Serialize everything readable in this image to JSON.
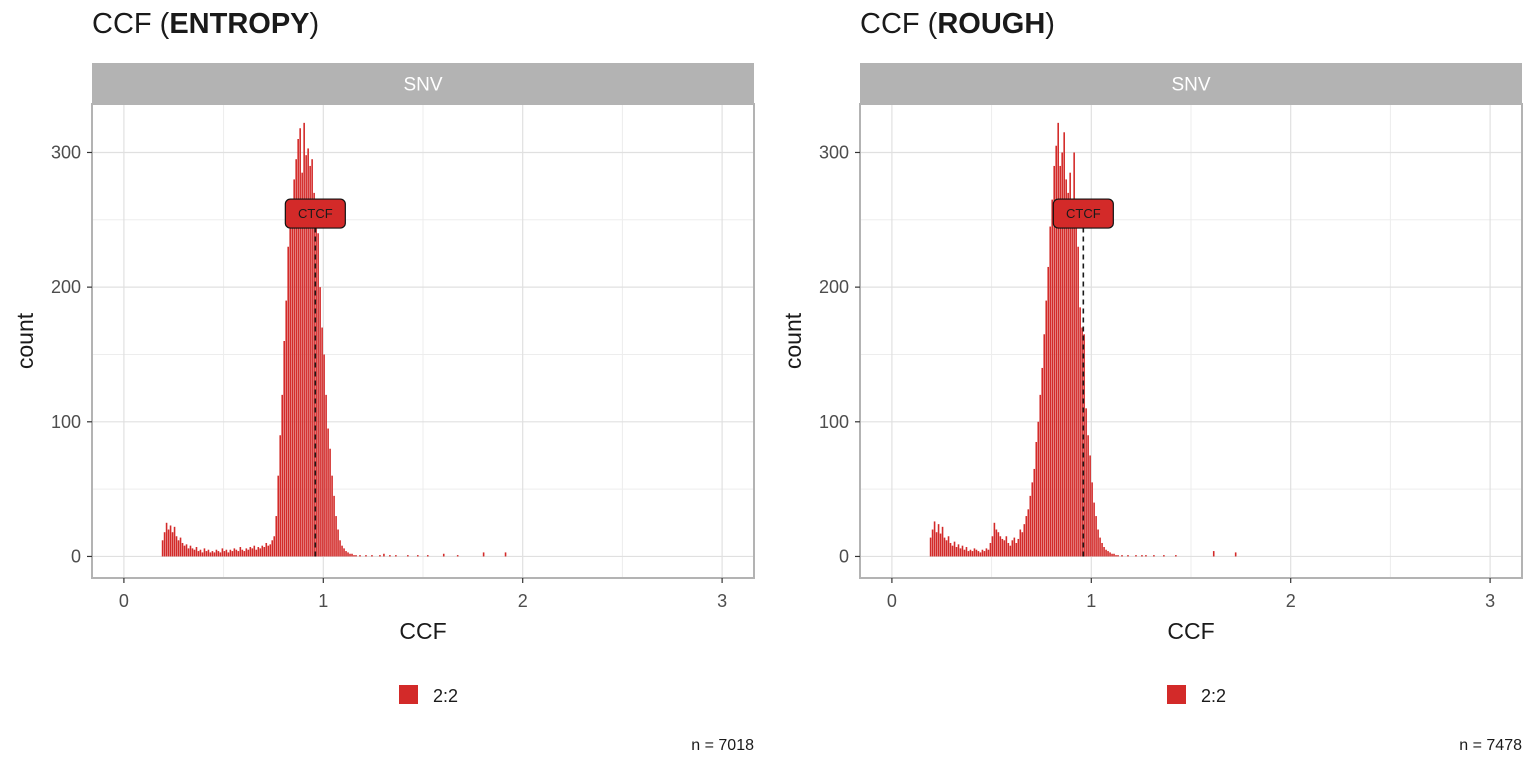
{
  "chart_data": [
    {
      "type": "bar",
      "title_prefix": "CCF (",
      "title_bold": "ENTROPY",
      "title_suffix": ")",
      "facet_label": "SNV",
      "xlabel": "CCF",
      "ylabel": "count",
      "xlim": [
        -0.16,
        3.16
      ],
      "ylim": [
        -16,
        336
      ],
      "xticks": [
        0,
        1,
        2,
        3
      ],
      "yticks": [
        0,
        100,
        200,
        300
      ],
      "bar_color": "#d32a29",
      "annotation": {
        "label": "CTCF",
        "x": 0.96,
        "y": 255
      },
      "legend": {
        "entries": [
          "2:2"
        ],
        "position": "bottom"
      },
      "caption": "n = 7018",
      "bins": {
        "start": 0.19,
        "width": 0.01,
        "counts": [
          12,
          18,
          25,
          20,
          23,
          18,
          22,
          15,
          12,
          14,
          10,
          8,
          9,
          6,
          8,
          6,
          5,
          7,
          4,
          5,
          3,
          6,
          4,
          5,
          3,
          4,
          3,
          5,
          4,
          3,
          6,
          4,
          5,
          3,
          5,
          4,
          6,
          5,
          4,
          7,
          5,
          4,
          6,
          5,
          7,
          6,
          8,
          5,
          7,
          6,
          8,
          7,
          10,
          8,
          9,
          12,
          15,
          30,
          60,
          90,
          120,
          160,
          190,
          230,
          245,
          260,
          280,
          295,
          310,
          318,
          285,
          322,
          298,
          303,
          290,
          295,
          270,
          260,
          240,
          200,
          170,
          150,
          120,
          95,
          80,
          60,
          45,
          30,
          20,
          12,
          8,
          6,
          4,
          3,
          2,
          2,
          1,
          1,
          0,
          1,
          0,
          0,
          1,
          0,
          0,
          1,
          0,
          0,
          0,
          1,
          0,
          2,
          0,
          0,
          1,
          0,
          0,
          1,
          0,
          0,
          0,
          0,
          0,
          1,
          0,
          0,
          0,
          0,
          1,
          0,
          0,
          0,
          0,
          1,
          0,
          0,
          0,
          0,
          0,
          0,
          0,
          2,
          0,
          0,
          0,
          0,
          0,
          0,
          1,
          0,
          0,
          0,
          0,
          0,
          0,
          0,
          0,
          0,
          0,
          0,
          0,
          3,
          0,
          0,
          0,
          0,
          0,
          0,
          0,
          0,
          0,
          0,
          3
        ]
      }
    },
    {
      "type": "bar",
      "title_prefix": "CCF (",
      "title_bold": "ROUGH",
      "title_suffix": ")",
      "facet_label": "SNV",
      "xlabel": "CCF",
      "ylabel": "count",
      "xlim": [
        -0.16,
        3.16
      ],
      "ylim": [
        -16,
        336
      ],
      "xticks": [
        0,
        1,
        2,
        3
      ],
      "yticks": [
        0,
        100,
        200,
        300
      ],
      "bar_color": "#d32a29",
      "annotation": {
        "label": "CTCF",
        "x": 0.96,
        "y": 255
      },
      "legend": {
        "entries": [
          "2:2"
        ],
        "position": "bottom"
      },
      "caption": "n = 7478",
      "bins": {
        "start": 0.19,
        "width": 0.01,
        "counts": [
          14,
          20,
          26,
          18,
          24,
          17,
          22,
          14,
          12,
          15,
          10,
          8,
          11,
          7,
          9,
          6,
          8,
          5,
          7,
          4,
          5,
          4,
          6,
          5,
          4,
          3,
          5,
          4,
          6,
          5,
          10,
          15,
          25,
          20,
          18,
          15,
          13,
          12,
          15,
          10,
          8,
          12,
          14,
          10,
          13,
          20,
          18,
          24,
          30,
          35,
          45,
          55,
          65,
          85,
          100,
          120,
          140,
          165,
          190,
          215,
          245,
          265,
          290,
          305,
          322,
          290,
          300,
          315,
          280,
          270,
          285,
          260,
          300,
          250,
          230,
          185,
          170,
          165,
          110,
          90,
          75,
          55,
          40,
          30,
          20,
          14,
          10,
          7,
          5,
          4,
          3,
          2,
          2,
          1,
          1,
          0,
          1,
          0,
          0,
          1,
          0,
          0,
          0,
          1,
          0,
          0,
          1,
          0,
          1,
          0,
          0,
          0,
          1,
          0,
          0,
          0,
          0,
          1,
          0,
          0,
          0,
          0,
          0,
          1,
          0,
          0,
          0,
          0,
          0,
          0,
          0,
          0,
          0,
          0,
          0,
          0,
          0,
          0,
          0,
          0,
          0,
          0,
          4,
          0,
          0,
          0,
          0,
          0,
          0,
          0,
          0,
          0,
          0,
          3
        ]
      }
    }
  ]
}
